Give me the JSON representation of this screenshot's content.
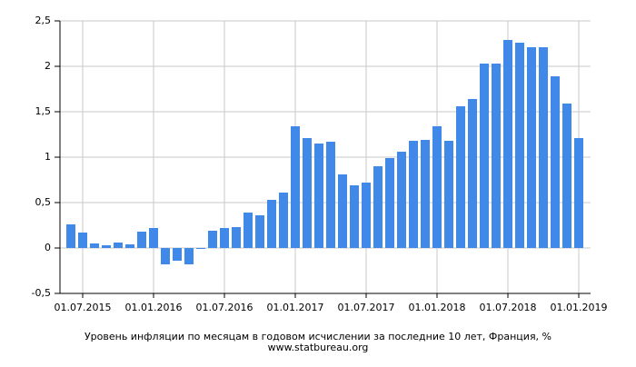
{
  "chart_data": {
    "type": "bar",
    "title": "Уровень инфляции по месяцам в годовом исчислении за последние 10 лет, Франция, %",
    "subtitle": "www.statbureau.org",
    "categories": [
      null,
      "01.07.2015",
      null,
      null,
      null,
      null,
      null,
      "01.01.2016",
      null,
      null,
      null,
      null,
      null,
      "01.07.2016",
      null,
      null,
      null,
      null,
      null,
      "01.01.2017",
      null,
      null,
      null,
      null,
      null,
      "01.07.2017",
      null,
      null,
      null,
      null,
      null,
      "01.01.2018",
      null,
      null,
      null,
      null,
      null,
      "01.07.2018",
      null,
      null,
      null,
      null,
      null,
      "01.01.2019"
    ],
    "values": [
      0.26,
      0.17,
      0.05,
      0.03,
      0.06,
      0.04,
      0.18,
      0.22,
      -0.18,
      -0.14,
      -0.18,
      -0.01,
      0.19,
      0.22,
      0.23,
      0.39,
      0.36,
      0.53,
      0.61,
      1.34,
      1.21,
      1.15,
      1.17,
      0.81,
      0.69,
      0.72,
      0.9,
      0.99,
      1.06,
      1.18,
      1.19,
      1.34,
      1.18,
      1.56,
      1.64,
      2.03,
      2.03,
      2.29,
      2.26,
      2.21,
      2.21,
      1.89,
      1.59,
      1.21
    ],
    "color": "#4189e8",
    "ylim": [
      -0.5,
      2.5
    ],
    "yticks": [
      {
        "value": -0.5,
        "label": "-0,5"
      },
      0,
      {
        "value": 0.5,
        "label": "0,5"
      },
      1,
      {
        "value": 1.5,
        "label": "1,5"
      },
      2,
      {
        "value": 2.5,
        "label": "2,5"
      }
    ],
    "grid": true
  }
}
